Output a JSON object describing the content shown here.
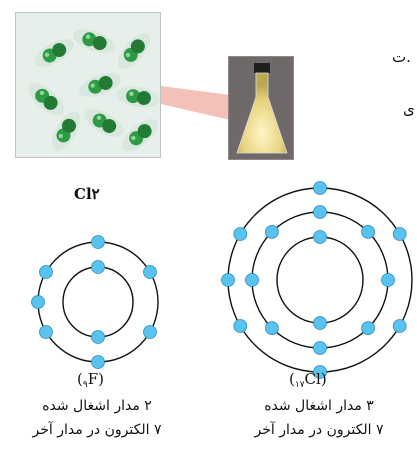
{
  "molecule_formula": "Cl۲",
  "photo": {
    "molecule_count": 9,
    "gas_color": "#2f9a44",
    "background": "#e7efea"
  },
  "flask": {
    "gas_color": "#e6d27a",
    "box_color": "#6f6a69"
  },
  "edge_text": {
    "line1": "ت.",
    "line2": "ی"
  },
  "atoms": [
    {
      "id": "fluorine",
      "label_prefix": "(",
      "label_subscript": "۹",
      "label_element": "F",
      "label_suffix": ")",
      "orbits_count": 2,
      "electrons_per_orbit": [
        2,
        7
      ],
      "line_orbits": "۲ مدار اشغال شده",
      "line_outer": "۷ الکترون در مدار آخر"
    },
    {
      "id": "chlorine",
      "label_prefix": "(",
      "label_subscript": "۱۷",
      "label_element": "Cl",
      "label_suffix": ")",
      "orbits_count": 3,
      "electrons_per_orbit": [
        2,
        8,
        7
      ],
      "line_orbits": "۳ مدار اشغال شده",
      "line_outer": "۷ الکترون در مدار آخر"
    }
  ],
  "colors": {
    "electron": "#59c3ee",
    "electron_stroke": "#2a8fbf",
    "orbit": "#111111"
  }
}
